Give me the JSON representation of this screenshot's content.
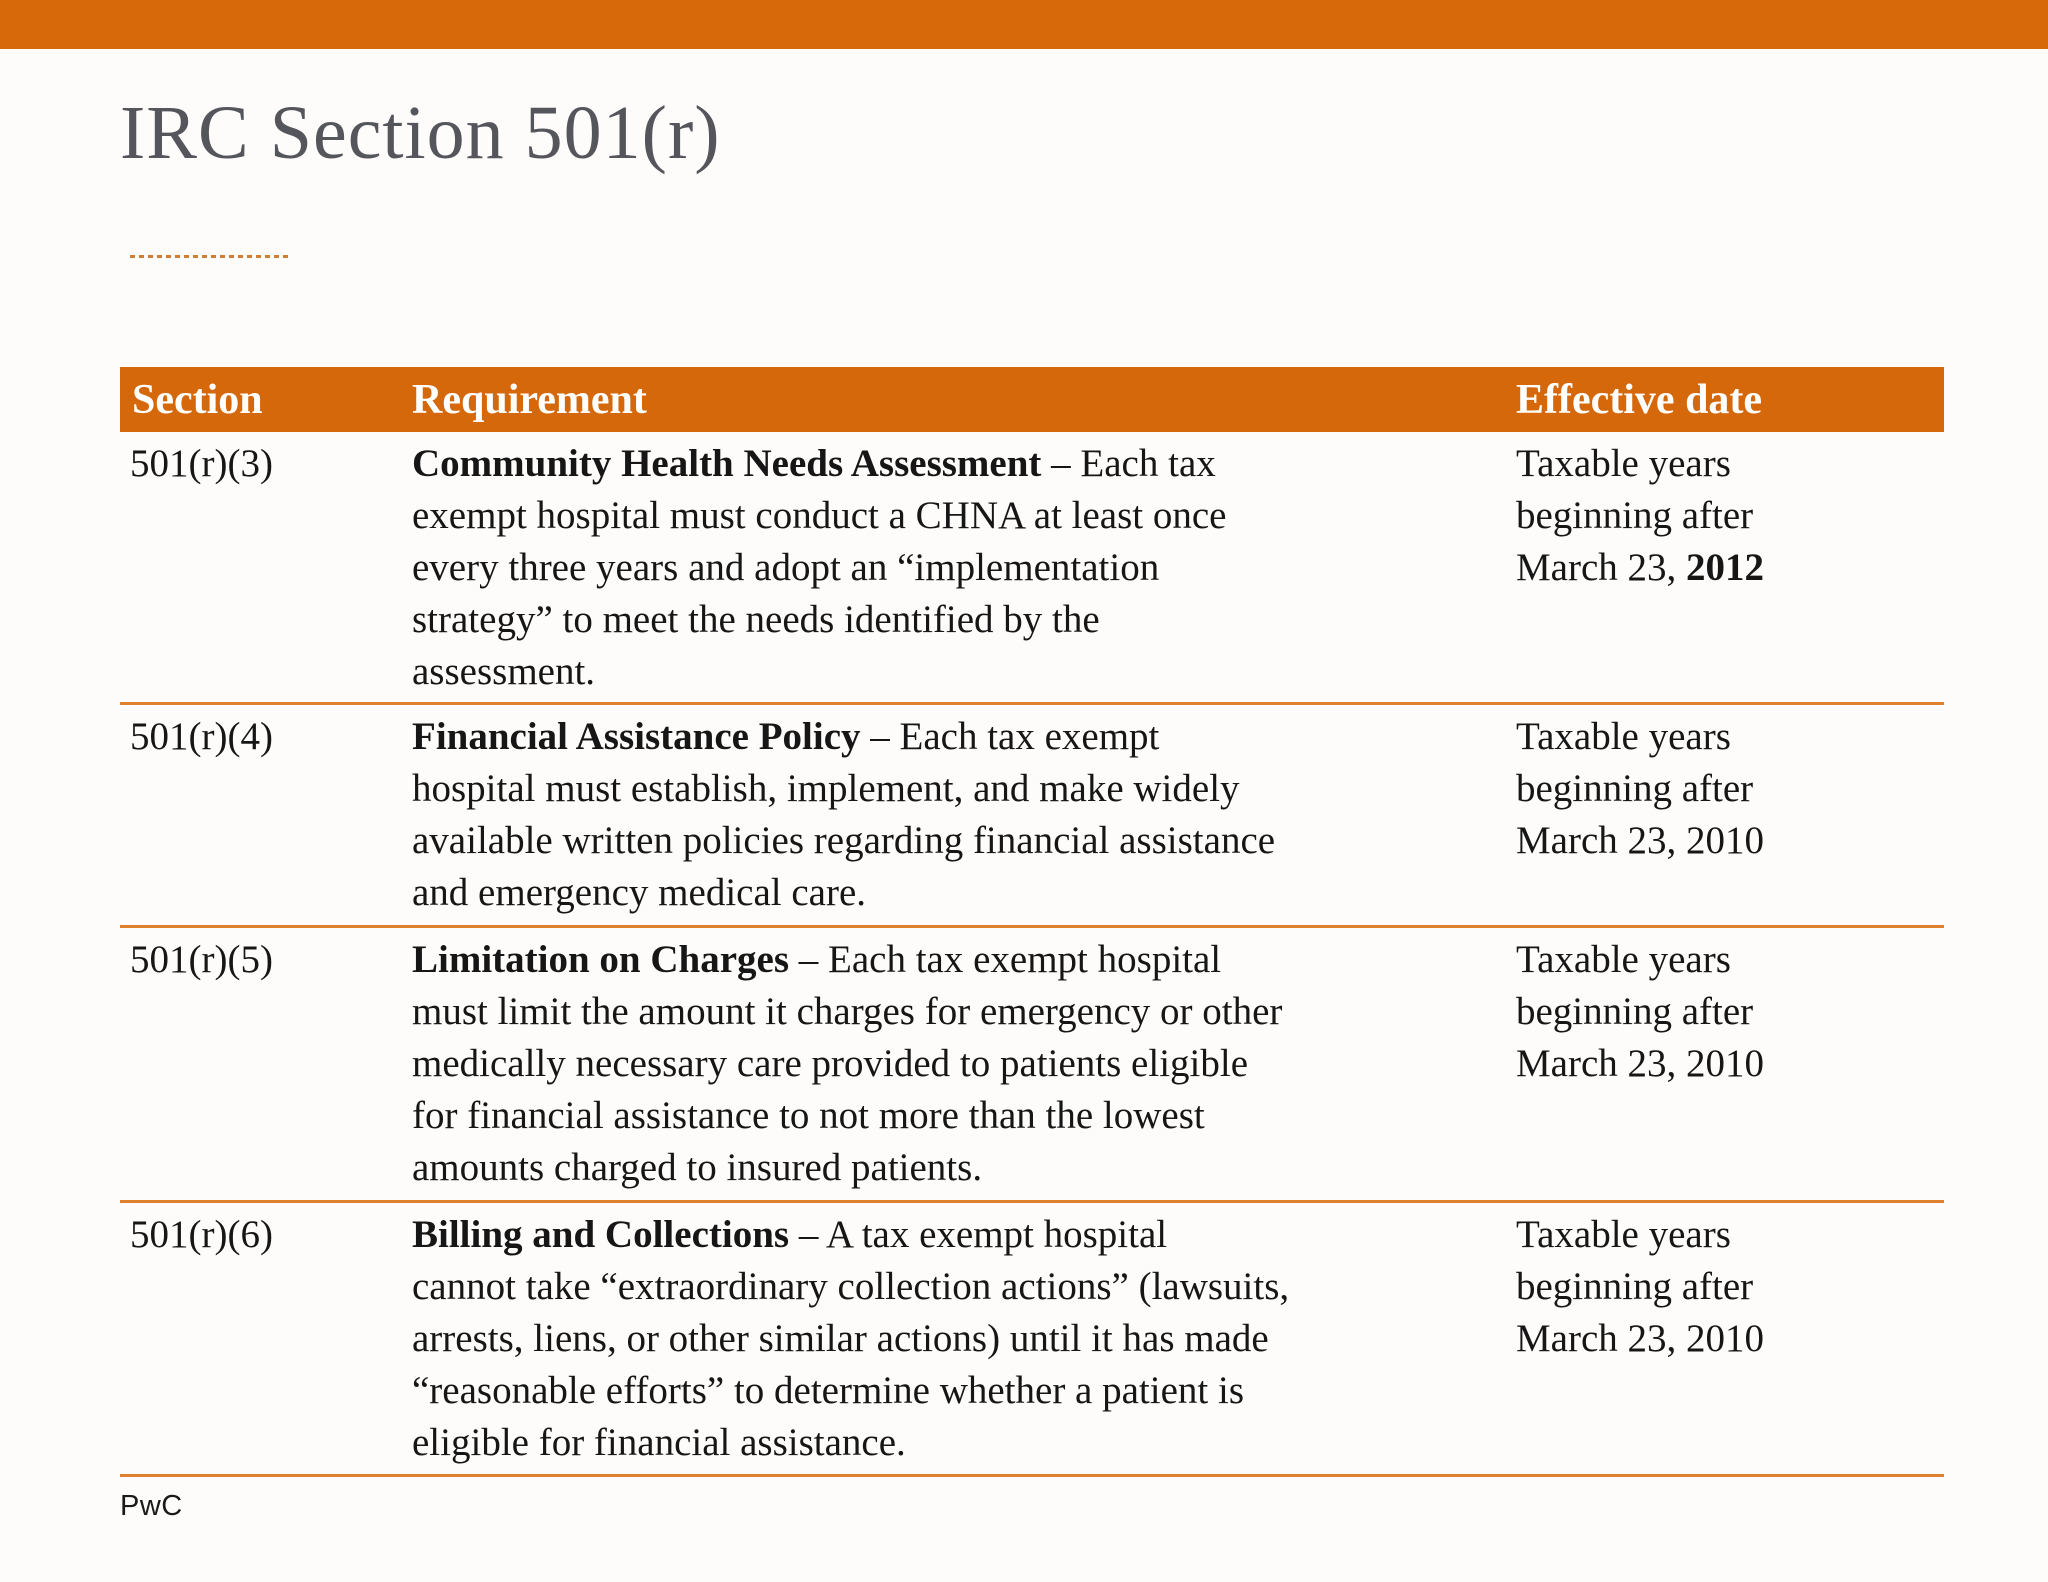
{
  "slide": {
    "title": "IRC Section 501(r)",
    "footer_logo": "PwC"
  },
  "colors": {
    "accent_orange": "#d7690a",
    "table_header_orange": "#d5680b",
    "row_separator_orange": "#df802c",
    "title_gray": "#55555c",
    "body_text": "#161616",
    "background": "#fdfcfa"
  },
  "table": {
    "headers": [
      "Section",
      "Requirement",
      "Effective date"
    ],
    "rows": [
      {
        "section": "501(r)(3)",
        "req_bold": "Community Health Needs Assessment",
        "req_rest": " – Each tax\nexempt hospital must conduct a CHNA at least once\nevery three years and adopt an “implementation\nstrategy” to meet the needs identified by the\nassessment.",
        "date_text": "Taxable years\nbeginning after\nMarch 23, ",
        "date_bold": "2012"
      },
      {
        "section": "501(r)(4)",
        "req_bold": "Financial Assistance Policy",
        "req_rest": " – Each tax exempt\nhospital must establish, implement, and make widely\navailable written policies regarding financial assistance\nand emergency medical care.",
        "date_text": "Taxable years\nbeginning after\nMarch 23, 2010",
        "date_bold": ""
      },
      {
        "section": "501(r)(5)",
        "req_bold": "Limitation on Charges",
        "req_rest": " – Each tax exempt hospital\nmust limit the amount it charges for emergency or other\nmedically necessary care provided to patients eligible\nfor financial assistance to not more than the lowest\namounts charged to insured patients.",
        "date_text": "Taxable years\nbeginning after\nMarch 23, 2010",
        "date_bold": ""
      },
      {
        "section": "501(r)(6)",
        "req_bold": "Billing and Collections",
        "req_rest": " – A tax exempt hospital\ncannot take “extraordinary collection actions” (lawsuits,\narrests, liens, or other similar actions) until it has made\n“reasonable efforts” to determine whether a patient is\neligible for financial assistance.",
        "date_text": "Taxable years\nbeginning after\nMarch 23, 2010",
        "date_bold": ""
      }
    ]
  }
}
